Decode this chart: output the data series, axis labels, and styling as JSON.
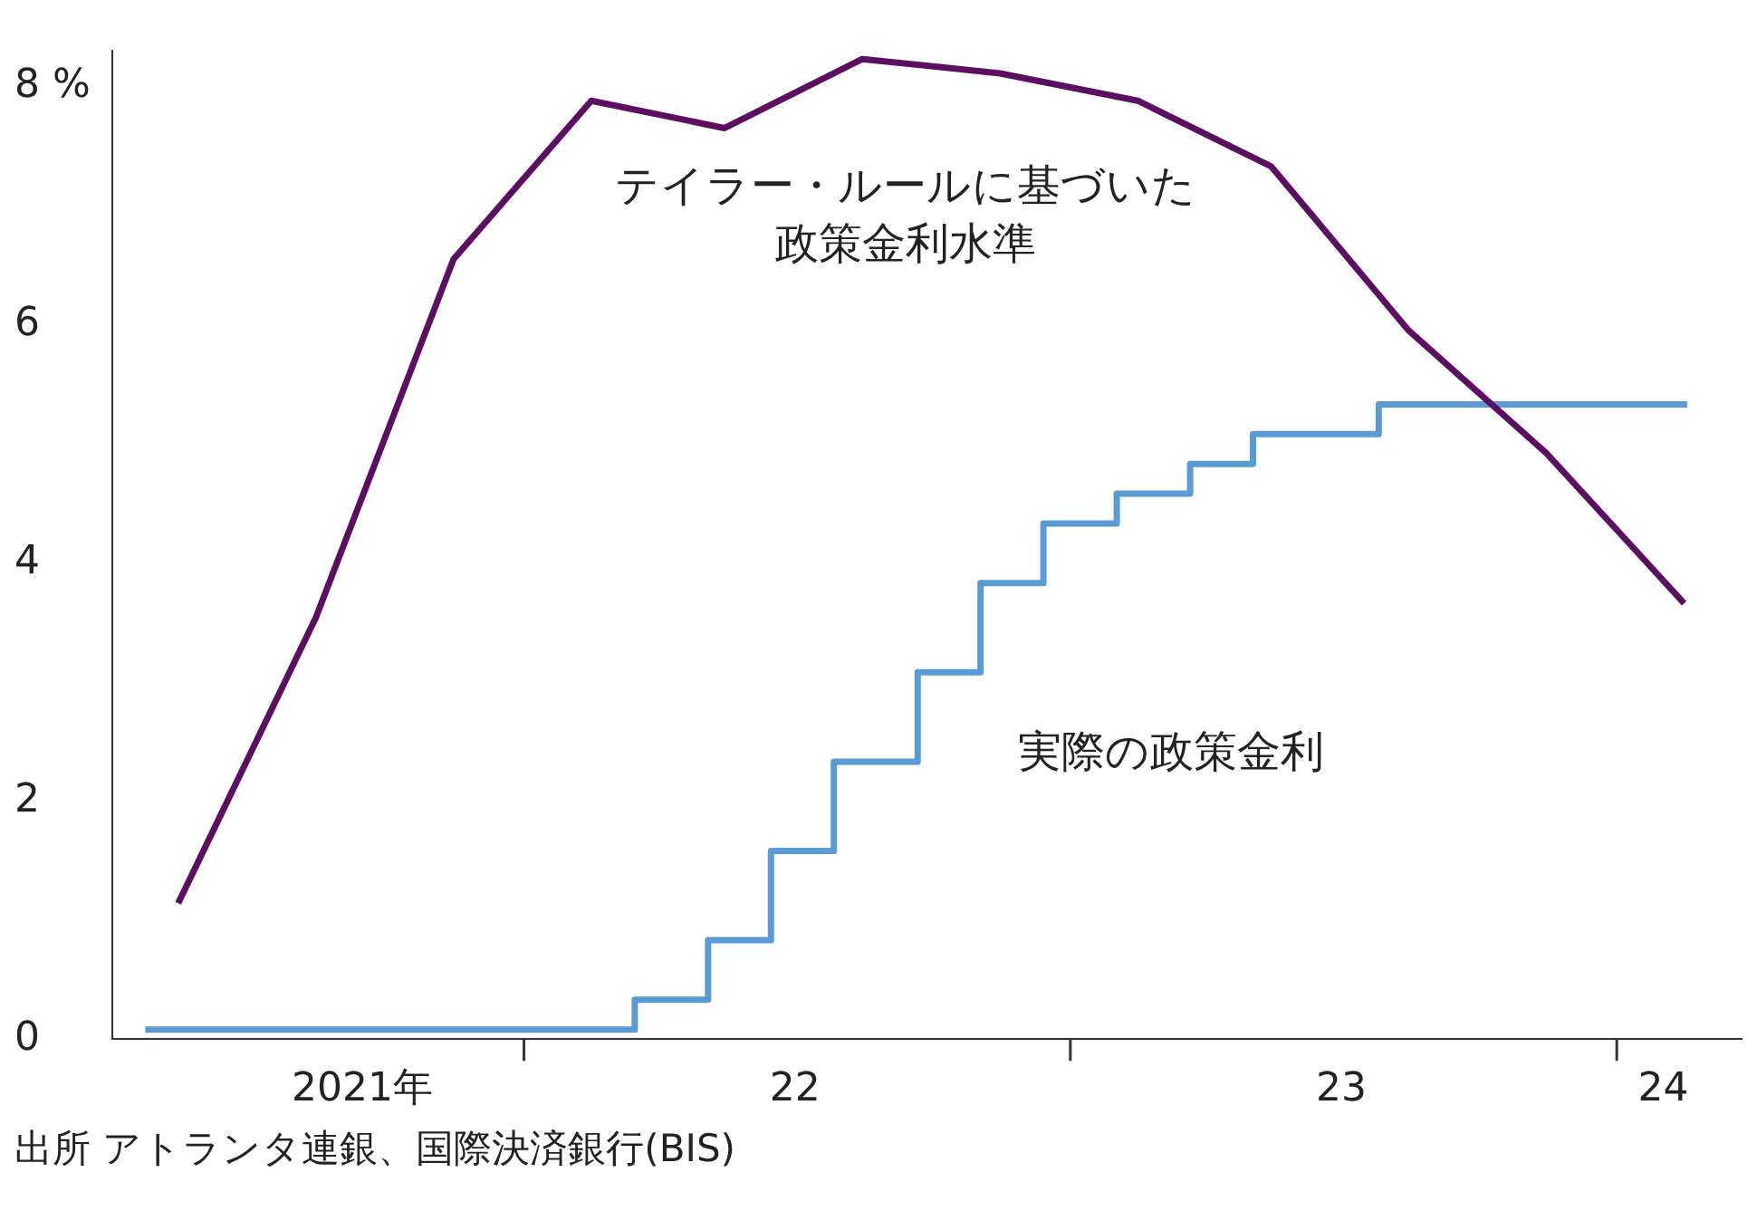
{
  "chart_data": {
    "type": "line",
    "xlim": [
      "2021-04-01",
      "2024-03-25"
    ],
    "ylim": [
      0,
      8.3
    ],
    "xticks": [
      {
        "value": "2021-09-15",
        "label": "2021年"
      },
      {
        "value": "2022",
        "label": null
      },
      {
        "value": "2022-07",
        "label": "22"
      },
      {
        "value": "2023",
        "label": null
      },
      {
        "value": "2023-07",
        "label": "23"
      },
      {
        "value": "2024",
        "label": null
      },
      {
        "value": "2024-02",
        "label": "24"
      }
    ],
    "yticks": [
      0,
      2,
      4,
      6,
      {
        "value": 8,
        "label": "8 %"
      }
    ],
    "grid": false,
    "legend": false,
    "marker": "none",
    "line_style": "solid",
    "series": [
      {
        "name": "テイラー・ルールに基づいた政策金利水準",
        "color": "#5c0f60",
        "x": [
          "2021-05-15",
          "2021-08-15",
          "2021-11-15",
          "2022-02-15",
          "2022-05-15",
          "2022-08-15",
          "2022-11-15",
          "2023-02-15",
          "2023-05-15",
          "2023-08-15",
          "2023-11-15",
          "2024-02-15"
        ],
        "values": [
          1.14,
          3.54,
          6.55,
          7.88,
          7.65,
          8.23,
          8.11,
          7.88,
          7.33,
          5.95,
          4.92,
          3.66
        ]
      },
      {
        "name": "実際の政策金利",
        "type": "step",
        "color": "#5b9bd5",
        "x": [
          "2021-04-23",
          "2022-03-16",
          "2022-05-04",
          "2022-06-15",
          "2022-07-27",
          "2022-09-21",
          "2022-11-02",
          "2022-12-14",
          "2023-02-01",
          "2023-03-22",
          "2023-05-03",
          "2023-07-26",
          "2024-02-17"
        ],
        "values": [
          0.08,
          0.33,
          0.83,
          1.58,
          2.33,
          3.08,
          3.83,
          4.33,
          4.58,
          4.83,
          5.08,
          5.33,
          5.33
        ]
      }
    ],
    "annotations": [
      "出所 アトランタ連銀、国際決済銀行(BIS)"
    ]
  }
}
